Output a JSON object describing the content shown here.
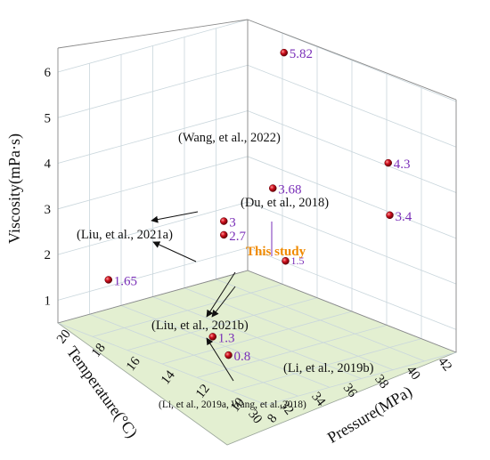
{
  "chart_data": {
    "type": "scatter",
    "title": "",
    "xlabel": "Pressure(MPa)",
    "ylabel": "Temperature(°C)",
    "zlabel": "Viscosity(mPa·s)",
    "xticks": [
      "8",
      "10",
      "12",
      "14",
      "16",
      "18",
      "20"
    ],
    "yticks": [
      "30",
      "32",
      "34",
      "36",
      "38",
      "40",
      "42"
    ],
    "zticks": [
      "1",
      "2",
      "3",
      "4",
      "5",
      "6"
    ],
    "xlim": [
      8,
      20
    ],
    "ylim": [
      30,
      42
    ],
    "zlim": [
      0.5,
      6
    ],
    "grid": true,
    "floor_color": "#e3efd1",
    "point_color": "#c8102e",
    "points": [
      {
        "label": "5.82",
        "x": 17,
        "y": 41,
        "z": 5.82
      },
      {
        "label": "4.3",
        "x": 11,
        "y": 41,
        "z": 4.3
      },
      {
        "label": "1.5",
        "x": 16,
        "y": 40,
        "z": 1.5
      },
      {
        "label": "3.68",
        "x": 14,
        "y": 37,
        "z": 3.68
      },
      {
        "label": "3.4",
        "x": 10,
        "y": 40,
        "z": 3.4
      },
      {
        "label": "3",
        "x": 15,
        "y": 35,
        "z": 3.0
      },
      {
        "label": "2.7",
        "x": 15,
        "y": 35,
        "z": 2.7
      },
      {
        "label": "1.65",
        "x": 18,
        "y": 31,
        "z": 1.65
      },
      {
        "label": "0.8",
        "x": 12,
        "y": 32,
        "z": 0.8
      },
      {
        "label": "1.3",
        "x": 12,
        "y": 31,
        "z": 1.3
      }
    ],
    "annotations": [
      {
        "text": "(Wang, et al., 2022)"
      },
      {
        "text": "(Du, et al., 2018)"
      },
      {
        "text": "(Liu, et al., 2021a)"
      },
      {
        "text": "This study"
      },
      {
        "text": "(Liu, et al., 2021b)"
      },
      {
        "text": "(Li, et al., 2019b)"
      },
      {
        "text": "(Li, et al., 2019a, Wang, et al.,2018)"
      }
    ]
  }
}
